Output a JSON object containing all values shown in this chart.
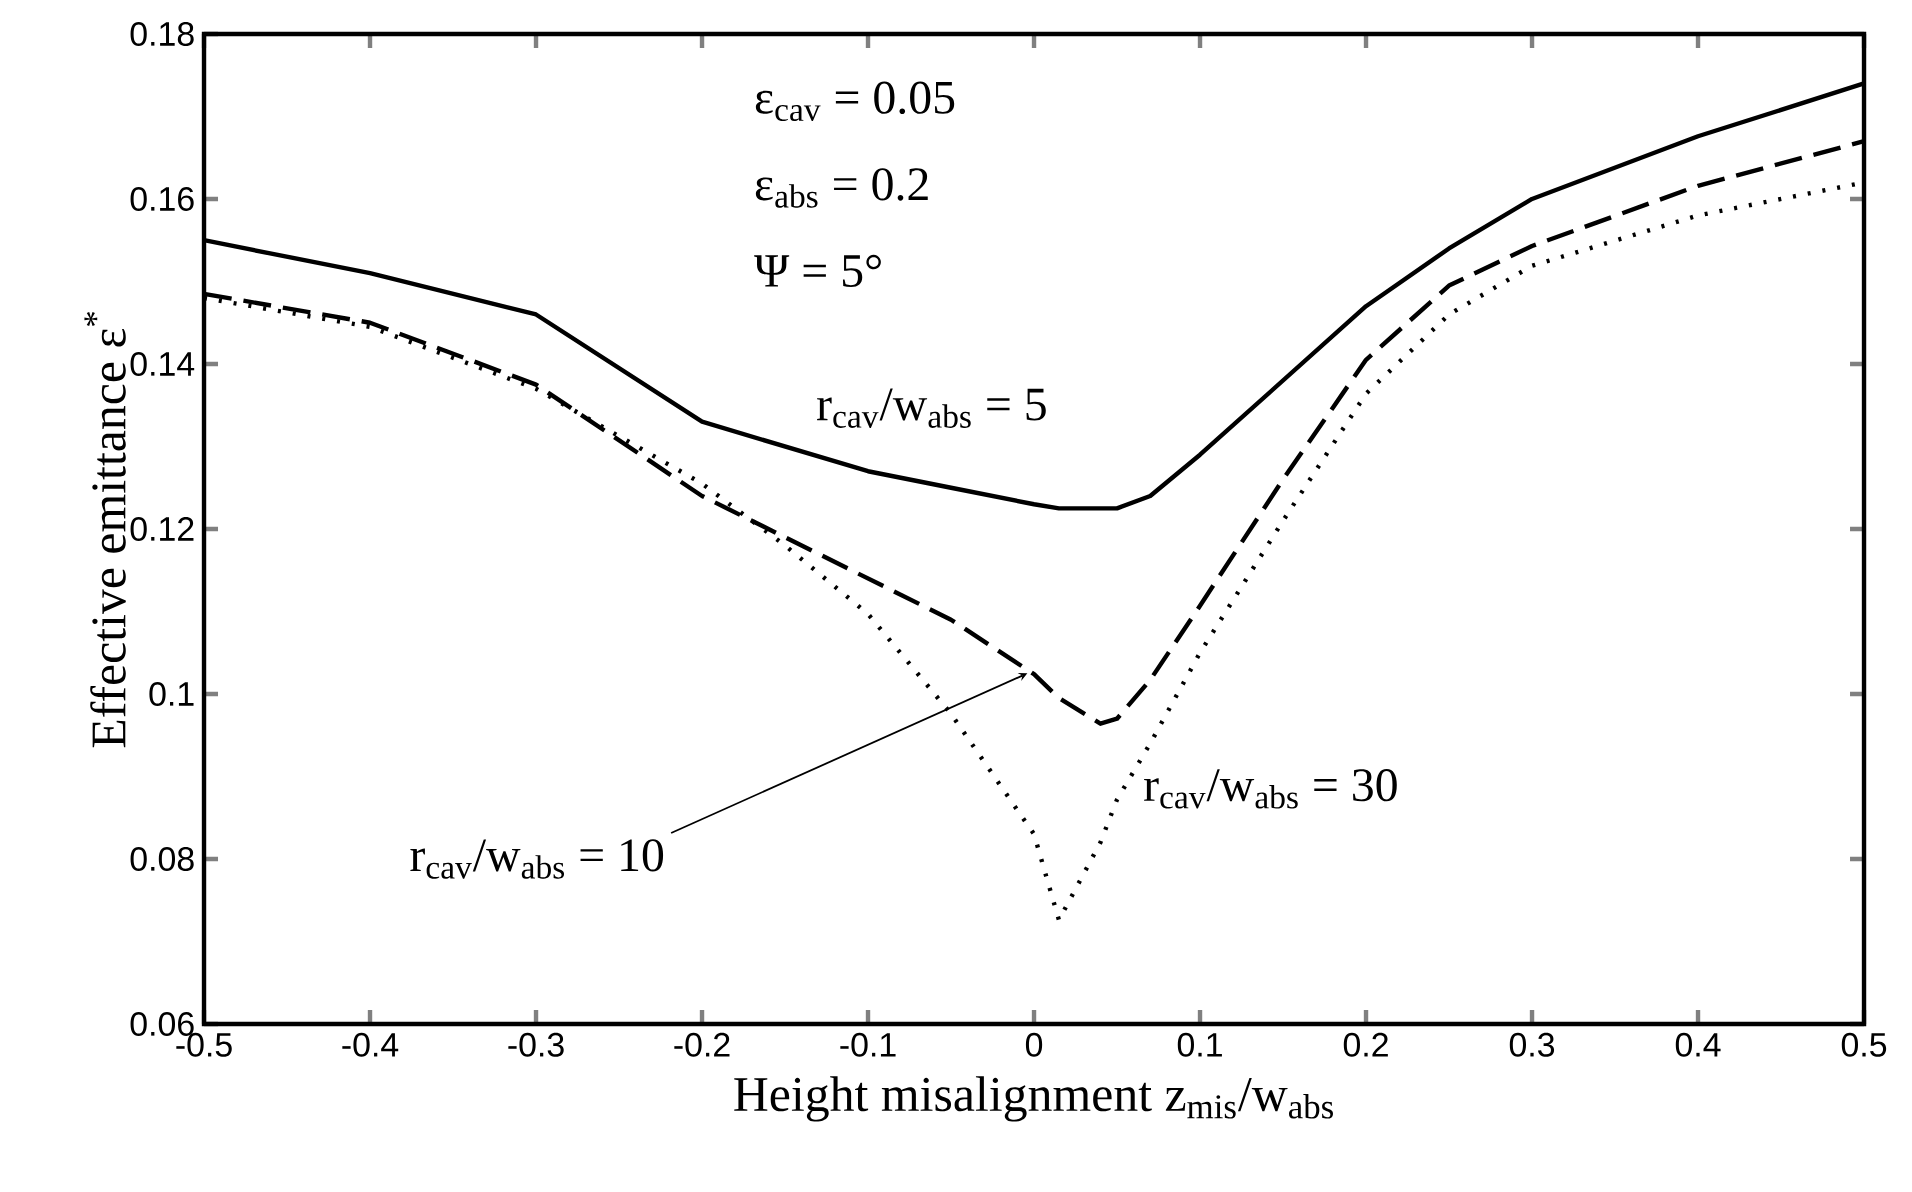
{
  "chart_data": {
    "type": "line",
    "xlabel": "Height misalignment  z$_{mis}$/w$_{abs}$",
    "ylabel": "Effective emittance  ε$^{*}$",
    "annotations": [
      "ε$_{cav}$ = 0.05",
      "ε$_{abs}$ = 0.2",
      "Ψ = 5°"
    ],
    "x": [
      -0.5,
      -0.4,
      -0.3,
      -0.2,
      -0.15,
      -0.1,
      -0.05,
      0,
      0.015,
      0.04,
      0.05,
      0.07,
      0.1,
      0.15,
      0.2,
      0.25,
      0.3,
      0.4,
      0.5
    ],
    "series": [
      {
        "name": "r$_{cav}$/w$_{abs}$ = 5",
        "color": "#000000",
        "line_style": "solid",
        "values": [
          0.155,
          0.151,
          0.146,
          0.133,
          0.13,
          0.127,
          0.125,
          0.123,
          0.1225,
          0.1225,
          0.1225,
          0.124,
          0.129,
          0.138,
          0.147,
          0.154,
          0.16,
          0.1676,
          0.174
        ]
      },
      {
        "name": "r$_{cav}$/w$_{abs}$ = 10",
        "color": "#000000",
        "line_style": "dashed",
        "values": [
          0.1485,
          0.145,
          0.1375,
          0.124,
          0.119,
          0.114,
          0.109,
          0.1024,
          0.0995,
          0.0964,
          0.097,
          0.1017,
          0.1107,
          0.126,
          0.1405,
          0.1495,
          0.1543,
          0.1616,
          0.167
        ]
      },
      {
        "name": "r$_{cav}$/w$_{abs}$ = 30",
        "color": "#000000",
        "line_style": "dotted",
        "values": [
          0.148,
          0.1445,
          0.137,
          0.1255,
          0.118,
          0.1097,
          0.0976,
          0.083,
          0.0726,
          0.082,
          0.0872,
          0.094,
          0.105,
          0.121,
          0.1364,
          0.146,
          0.1519,
          0.158,
          0.162
        ]
      }
    ],
    "xlim": [
      -0.5,
      0.5
    ],
    "ylim": [
      0.06,
      0.18
    ],
    "xticks": [
      -0.5,
      -0.4,
      -0.3,
      -0.2,
      -0.1,
      0,
      0.1,
      0.2,
      0.3,
      0.4,
      0.5
    ],
    "yticks": [
      0.06,
      0.08,
      0.1,
      0.12,
      0.14,
      0.16,
      0.18
    ],
    "grid": false,
    "legend": false,
    "marker": "none"
  }
}
